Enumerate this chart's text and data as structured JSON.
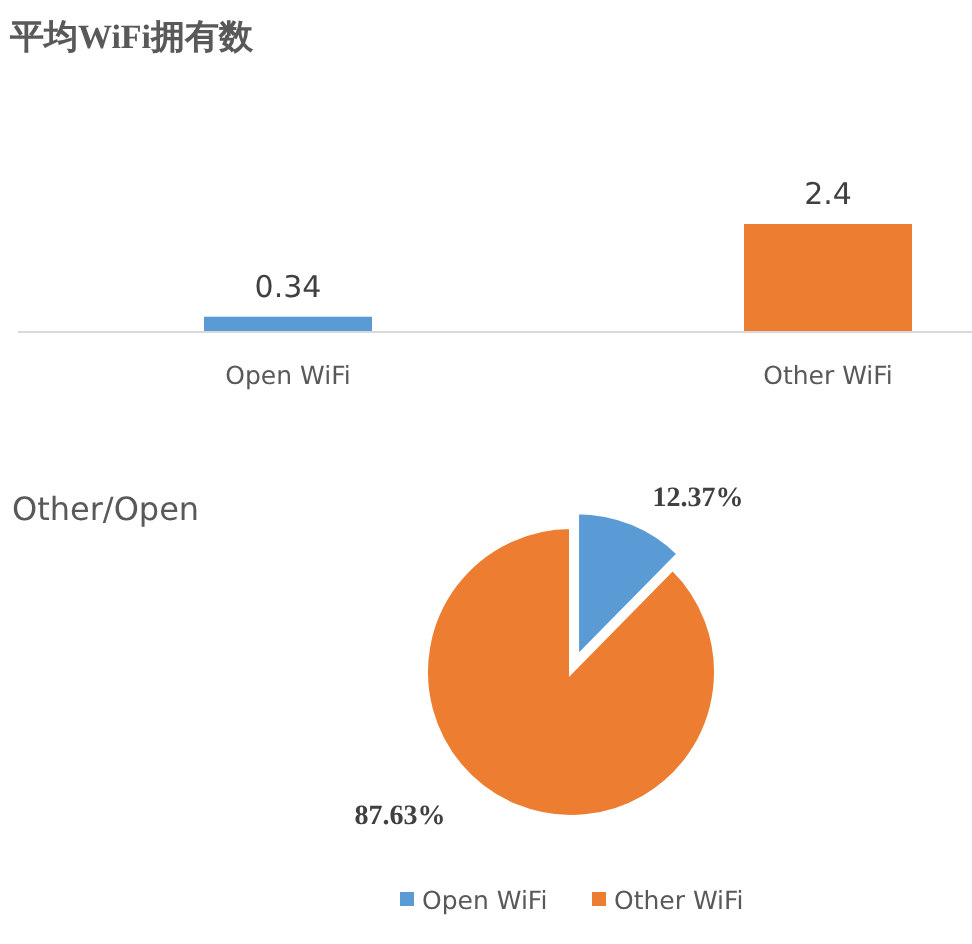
{
  "chart_data": [
    {
      "type": "bar",
      "title": "平均WiFi拥有数",
      "categories": [
        "Open WiFi",
        "Other WiFi"
      ],
      "values": [
        0.34,
        2.4
      ],
      "colors": [
        "#5b9bd5",
        "#ed7d31"
      ],
      "data_labels": true
    },
    {
      "type": "pie",
      "title": "Other/Open",
      "categories": [
        "Open WiFi",
        "Other WiFi"
      ],
      "values": [
        12.37,
        87.63
      ],
      "colors": [
        "#5b9bd5",
        "#ed7d31"
      ],
      "value_labels": [
        "12.37%",
        "87.63%"
      ],
      "legend": "bottom"
    }
  ]
}
